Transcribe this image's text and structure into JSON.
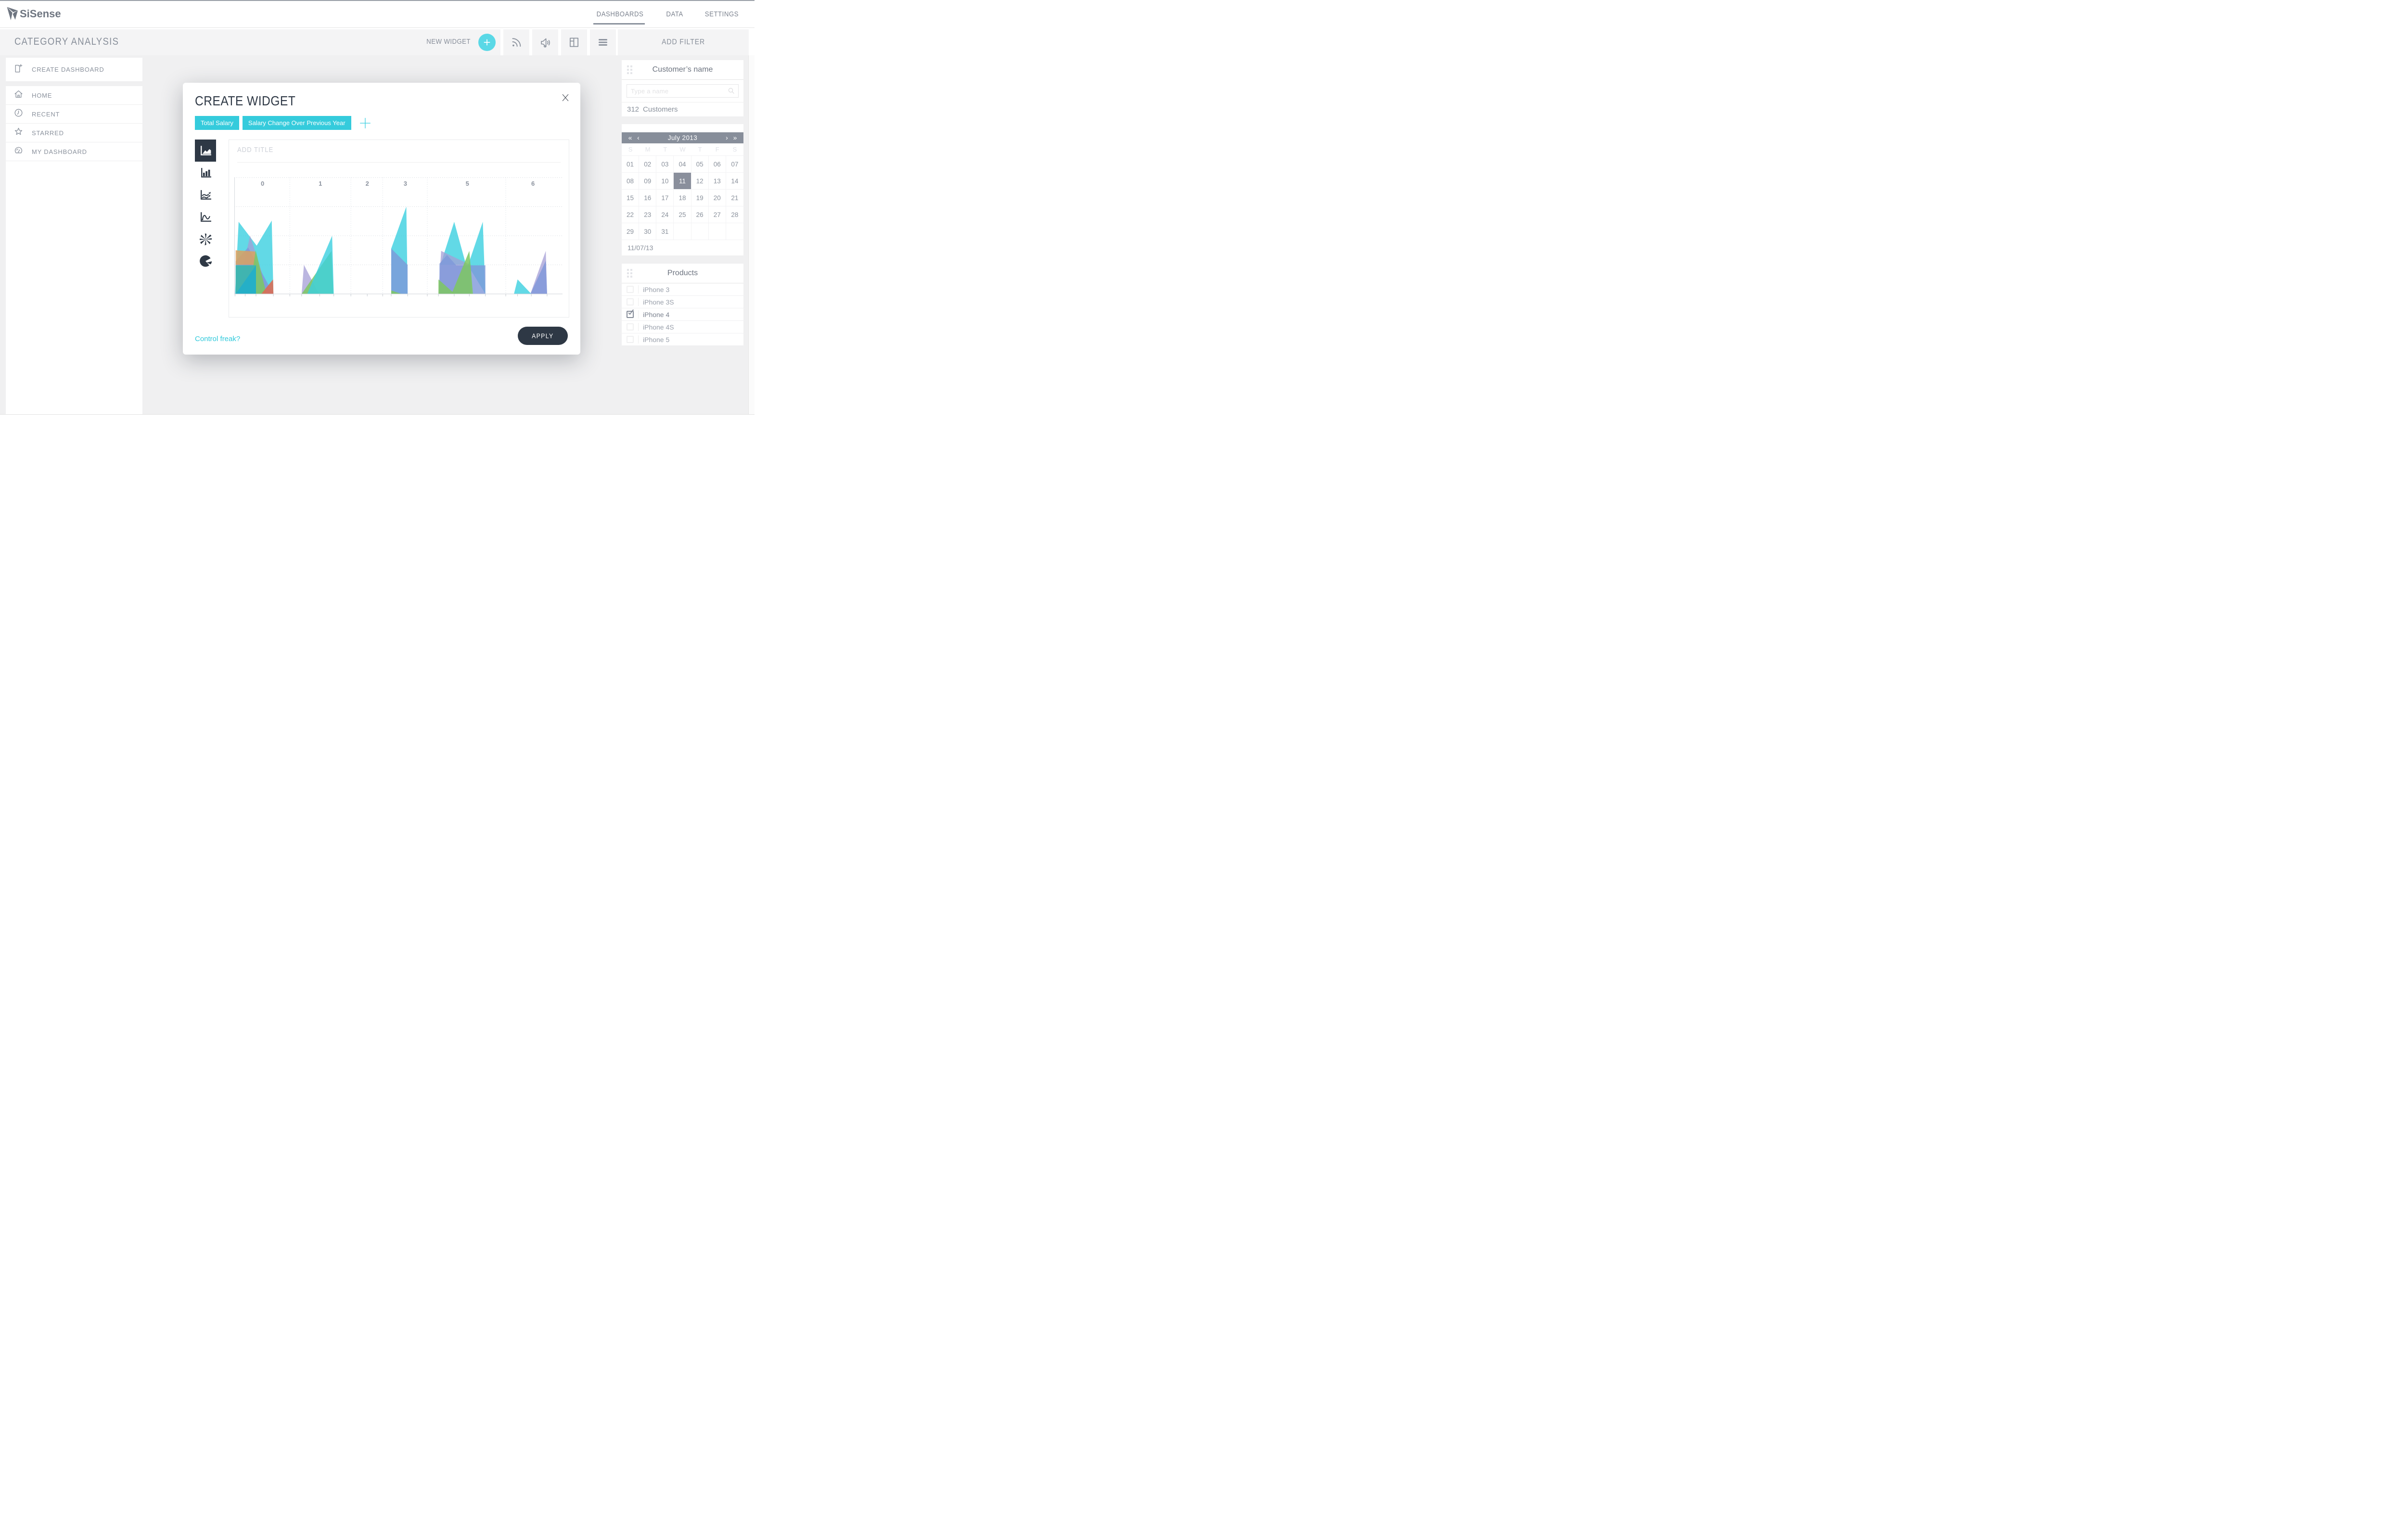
{
  "topnav": {
    "brand": "SiSense",
    "items": [
      {
        "label": "DASHBOARDS",
        "active": true
      },
      {
        "label": "DATA",
        "active": false
      },
      {
        "label": "SETTINGS",
        "active": false
      }
    ]
  },
  "toolbar": {
    "title": "CATEGORY ANALYSIS",
    "new_widget_label": "NEW WIDGET",
    "icons": [
      "rss-icon",
      "megaphone-icon",
      "layout-columns-icon",
      "menu-icon"
    ],
    "add_filter_label": "ADD FILTER"
  },
  "sidebar": {
    "items": [
      {
        "label": "CREATE DASHBOARD",
        "icon": "create-dashboard-icon"
      },
      {
        "label": "HOME",
        "icon": "home-icon"
      },
      {
        "label": "RECENT",
        "icon": "recent-icon"
      },
      {
        "label": "STARRED",
        "icon": "starred-icon"
      },
      {
        "label": "MY DASHBOARD",
        "icon": "my-dashboard-icon"
      }
    ]
  },
  "modal": {
    "title": "CREATE WIDGET",
    "tags": [
      "Total Salary",
      "Salary Change Over Previous Year"
    ],
    "add_title_placeholder": "ADD TITLE",
    "chart_types": [
      "area-chart",
      "bar-chart",
      "line-chart",
      "spline-chart",
      "burst-chart",
      "pie-chart"
    ],
    "selected_chart_type": "area-chart",
    "link_label": "Control freak?",
    "apply_label": "APPLY"
  },
  "chart_data": {
    "type": "area",
    "title": "",
    "xlabel": "",
    "ylabel": "",
    "categories": [
      {
        "label": "0",
        "x": 0.086
      },
      {
        "label": "1",
        "x": 0.262
      },
      {
        "label": "2",
        "x": 0.405
      },
      {
        "label": "3",
        "x": 0.521
      },
      {
        "label": "5",
        "x": 0.71
      },
      {
        "label": "6",
        "x": 0.91
      }
    ],
    "separators": [
      0.169,
      0.355,
      0.452,
      0.588,
      0.827
    ],
    "h_gridlines": [
      0.25,
      0.5,
      0.75
    ],
    "ticks": [
      0.002,
      0.033,
      0.066,
      0.119,
      0.169,
      0.205,
      0.26,
      0.303,
      0.355,
      0.405,
      0.452,
      0.478,
      0.528,
      0.588,
      0.622,
      0.67,
      0.716,
      0.765,
      0.827,
      0.863,
      0.905,
      0.953
    ],
    "grid": true,
    "legend": false,
    "areas": [
      {
        "series": "cyan",
        "color": "#3bcfe0",
        "opacity": 0.8,
        "points": [
          [
            0.002,
            0
          ],
          [
            0.013,
            0.62
          ],
          [
            0.068,
            0.415
          ],
          [
            0.114,
            0.63
          ],
          [
            0.119,
            0
          ]
        ]
      },
      {
        "series": "purple",
        "color": "#a49ed6",
        "opacity": 0.75,
        "points": [
          [
            0.008,
            0
          ],
          [
            0.048,
            0.5
          ],
          [
            0.105,
            0
          ]
        ]
      },
      {
        "series": "blue",
        "color": "#7e97d9",
        "opacity": 0.8,
        "points": [
          [
            0.004,
            0
          ],
          [
            0.004,
            0.28
          ],
          [
            0.042,
            0.4
          ],
          [
            0.119,
            0
          ]
        ]
      },
      {
        "series": "orange",
        "color": "#dba15f",
        "opacity": 0.85,
        "points": [
          [
            0.004,
            0.25
          ],
          [
            0.004,
            0.375
          ],
          [
            0.063,
            0.365
          ],
          [
            0.063,
            0.25
          ]
        ]
      },
      {
        "series": "green",
        "color": "#7cc860",
        "opacity": 0.85,
        "points": [
          [
            0.045,
            0
          ],
          [
            0.065,
            0.375
          ],
          [
            0.098,
            0
          ]
        ]
      },
      {
        "series": "teal",
        "color": "#39b7ab",
        "opacity": 0.9,
        "points": [
          [
            0.004,
            0
          ],
          [
            0.004,
            0.246
          ],
          [
            0.066,
            0.246
          ],
          [
            0.066,
            0
          ]
        ]
      },
      {
        "series": "teal2",
        "color": "#21aecb",
        "opacity": 0.85,
        "points": [
          [
            0.004,
            0
          ],
          [
            0.066,
            0.246
          ],
          [
            0.066,
            0
          ]
        ]
      },
      {
        "series": "red",
        "color": "#db6b54",
        "opacity": 0.9,
        "points": [
          [
            0.082,
            0
          ],
          [
            0.118,
            0.125
          ],
          [
            0.119,
            0
          ]
        ]
      },
      {
        "series": "purple",
        "color": "#a49ed6",
        "opacity": 0.75,
        "points": [
          [
            0.205,
            0
          ],
          [
            0.212,
            0.25
          ],
          [
            0.258,
            0
          ]
        ]
      },
      {
        "series": "green",
        "color": "#7cc860",
        "opacity": 0.85,
        "points": [
          [
            0.205,
            0
          ],
          [
            0.296,
            0.37
          ],
          [
            0.302,
            0
          ]
        ]
      },
      {
        "series": "cyan",
        "color": "#3bcfe0",
        "opacity": 0.8,
        "points": [
          [
            0.222,
            0
          ],
          [
            0.298,
            0.5
          ],
          [
            0.303,
            0
          ]
        ]
      },
      {
        "series": "cyan",
        "color": "#3bcfe0",
        "opacity": 0.8,
        "points": [
          [
            0.478,
            0
          ],
          [
            0.478,
            0.39
          ],
          [
            0.524,
            0.75
          ],
          [
            0.528,
            0
          ]
        ]
      },
      {
        "series": "blue",
        "color": "#7e97d9",
        "opacity": 0.8,
        "points": [
          [
            0.478,
            0
          ],
          [
            0.478,
            0.39
          ],
          [
            0.528,
            0.25
          ],
          [
            0.528,
            0
          ]
        ]
      },
      {
        "series": "green",
        "color": "#7cc860",
        "opacity": 0.85,
        "points": [
          [
            0.478,
            0
          ],
          [
            0.478,
            0.03
          ],
          [
            0.51,
            0
          ]
        ]
      },
      {
        "series": "cyan",
        "color": "#3bcfe0",
        "opacity": 0.8,
        "points": [
          [
            0.628,
            0.25
          ],
          [
            0.67,
            0.62
          ],
          [
            0.706,
            0.25
          ]
        ]
      },
      {
        "series": "cyan",
        "color": "#3bcfe0",
        "opacity": 0.8,
        "points": [
          [
            0.712,
            0.246
          ],
          [
            0.757,
            0.62
          ],
          [
            0.765,
            0
          ]
        ]
      },
      {
        "series": "purple",
        "color": "#a49ed6",
        "opacity": 0.75,
        "points": [
          [
            0.622,
            0
          ],
          [
            0.63,
            0.37
          ],
          [
            0.722,
            0.246
          ],
          [
            0.722,
            0
          ]
        ]
      },
      {
        "series": "blue",
        "color": "#7e97d9",
        "opacity": 0.8,
        "points": [
          [
            0.625,
            0
          ],
          [
            0.625,
            0.26
          ],
          [
            0.648,
            0.335
          ],
          [
            0.676,
            0.246
          ],
          [
            0.765,
            0.246
          ],
          [
            0.765,
            0
          ]
        ]
      },
      {
        "series": "green",
        "color": "#7cc860",
        "opacity": 0.85,
        "points": [
          [
            0.622,
            0
          ],
          [
            0.622,
            0.125
          ],
          [
            0.672,
            0
          ]
        ]
      },
      {
        "series": "green",
        "color": "#7cc860",
        "opacity": 0.85,
        "points": [
          [
            0.662,
            0
          ],
          [
            0.716,
            0.37
          ],
          [
            0.727,
            0
          ]
        ]
      },
      {
        "series": "cyan",
        "color": "#3bcfe0",
        "opacity": 0.8,
        "points": [
          [
            0.852,
            0
          ],
          [
            0.863,
            0.125
          ],
          [
            0.905,
            0
          ]
        ]
      },
      {
        "series": "purple",
        "color": "#a49ed6",
        "opacity": 0.75,
        "points": [
          [
            0.902,
            0
          ],
          [
            0.949,
            0.37
          ],
          [
            0.953,
            0
          ]
        ]
      },
      {
        "series": "blue",
        "color": "#7e97d9",
        "opacity": 0.8,
        "points": [
          [
            0.902,
            0
          ],
          [
            0.949,
            0.285
          ],
          [
            0.953,
            0
          ]
        ]
      }
    ]
  },
  "filters": {
    "header": "ADD FILTER",
    "customer": {
      "title": "Customer’s name",
      "search_placeholder": "Type a name",
      "count": "312",
      "count_label": "Customers"
    },
    "calendar": {
      "month": "July 2013",
      "nav": [
        "«",
        "‹",
        "›",
        "»"
      ],
      "weekdays": [
        "S",
        "M",
        "T",
        "W",
        "T",
        "F",
        "S"
      ],
      "weeks": [
        [
          "01",
          "02",
          "03",
          "04",
          "05",
          "06",
          "07"
        ],
        [
          "08",
          "09",
          "10",
          "11",
          "12",
          "13",
          "14"
        ],
        [
          "15",
          "16",
          "17",
          "18",
          "19",
          "20",
          "21"
        ],
        [
          "22",
          "23",
          "24",
          "25",
          "26",
          "27",
          "28"
        ],
        [
          "29",
          "30",
          "31",
          "",
          "",
          "",
          ""
        ]
      ],
      "selected": "11",
      "footer_date": "11/07/13"
    },
    "products": {
      "title": "Products",
      "items": [
        {
          "label": "iPhone 3",
          "checked": false
        },
        {
          "label": "iPhone 3S",
          "checked": false
        },
        {
          "label": "iPhone 4",
          "checked": true
        },
        {
          "label": "iPhone 4S",
          "checked": false
        },
        {
          "label": "iPhone 5",
          "checked": false
        }
      ]
    }
  },
  "colors": {
    "accent_cyan": "#35cbdc",
    "dark_navy": "#2e3845",
    "gray_text": "#8a919c",
    "calendar_header": "#878e9a"
  }
}
